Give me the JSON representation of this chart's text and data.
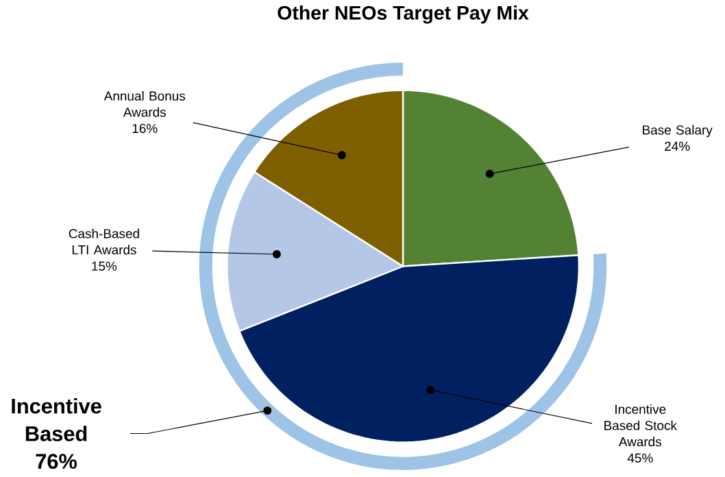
{
  "chart_data": {
    "type": "pie",
    "title": "Other NEOs Target Pay Mix",
    "categories": [
      "Base Salary",
      "Incentive Based Stock Awards",
      "Cash-Based LTI Awards",
      "Annual Bonus Awards"
    ],
    "values": [
      24,
      45,
      15,
      16
    ],
    "value_labels": [
      "24%",
      "45%",
      "15%",
      "16%"
    ],
    "colors": [
      "#548235",
      "#002060",
      "#b4c7e7",
      "#7f6000"
    ],
    "annotations": [
      "Incentive Based 76%"
    ]
  }
}
